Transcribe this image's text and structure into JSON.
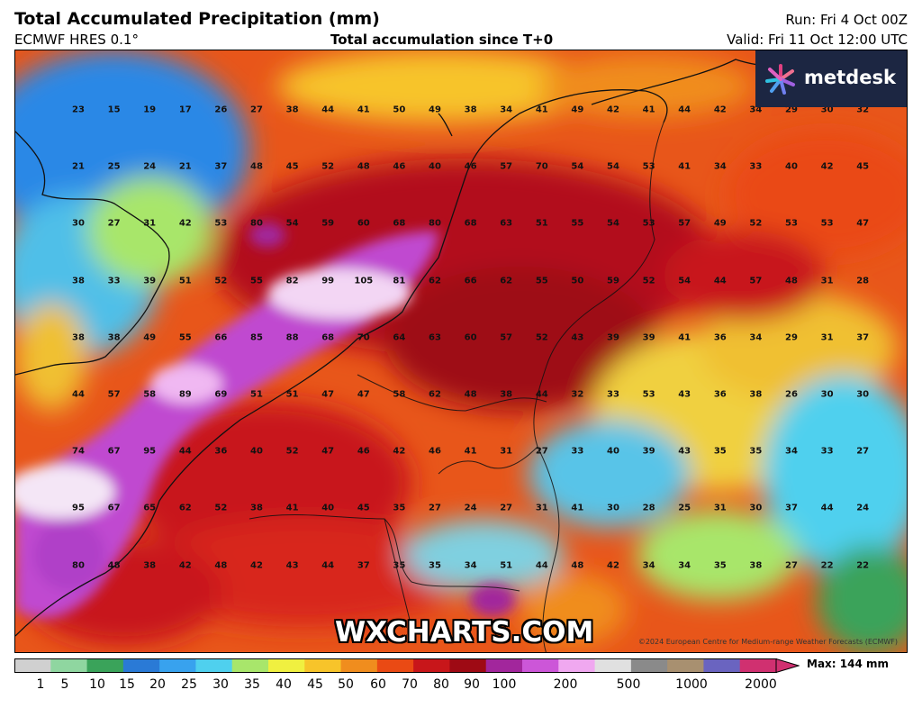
{
  "header": {
    "title": "Total Accumulated Precipitation (mm)",
    "model": "ECMWF HRES 0.1°",
    "subtitle": "Total accumulation since T+0",
    "run": "Run: Fri 4 Oct 00Z",
    "valid": "Valid: Fri 11 Oct 12:00 UTC"
  },
  "logo": {
    "text": "metdesk",
    "icon": "metdesk-star-icon"
  },
  "watermark": "WXCHARTS.COM",
  "copyright": "©2024 European Centre for Medium-range Weather Forecasts (ECMWF)",
  "legend": {
    "max_label": "Max: 144 mm",
    "ticks": [
      "1",
      "5",
      "10",
      "15",
      "20",
      "25",
      "30",
      "35",
      "40",
      "45",
      "50",
      "60",
      "70",
      "80",
      "90",
      "100",
      "200",
      "500",
      "1000",
      "2000"
    ],
    "colors": [
      "#d0d0d0",
      "#8fd6a0",
      "#3aa35a",
      "#2a7ad6",
      "#38a2ee",
      "#4fd0ee",
      "#a8e66b",
      "#f0f040",
      "#f7c42a",
      "#f08d1e",
      "#ea4a14",
      "#c8161a",
      "#9e0a14",
      "#a2269c",
      "#cc56d8",
      "#f0a8f0",
      "#e0e0e0",
      "#8a8a8a",
      "#a89070",
      "#6a64c0",
      "#d03070"
    ]
  },
  "values": [
    [
      "23",
      "15",
      "19",
      "17",
      "26",
      "27",
      "38",
      "44",
      "41",
      "50",
      "49",
      "38",
      "34",
      "41",
      "49",
      "42",
      "41",
      "44",
      "42",
      "34",
      "29",
      "30",
      "32"
    ],
    [
      "21",
      "25",
      "24",
      "21",
      "37",
      "48",
      "45",
      "52",
      "48",
      "46",
      "40",
      "46",
      "57",
      "70",
      "54",
      "54",
      "53",
      "41",
      "34",
      "33",
      "40",
      "42",
      "45"
    ],
    [
      "30",
      "27",
      "31",
      "42",
      "53",
      "80",
      "54",
      "59",
      "60",
      "68",
      "80",
      "68",
      "63",
      "51",
      "55",
      "54",
      "53",
      "57",
      "49",
      "52",
      "53",
      "53",
      "47"
    ],
    [
      "38",
      "33",
      "39",
      "51",
      "52",
      "55",
      "82",
      "99",
      "105",
      "81",
      "62",
      "66",
      "62",
      "55",
      "50",
      "59",
      "52",
      "54",
      "44",
      "57",
      "48",
      "31",
      "28"
    ],
    [
      "38",
      "38",
      "49",
      "55",
      "66",
      "85",
      "88",
      "68",
      "70",
      "64",
      "63",
      "60",
      "57",
      "52",
      "43",
      "39",
      "39",
      "41",
      "36",
      "34",
      "29",
      "31",
      "37"
    ],
    [
      "44",
      "57",
      "58",
      "89",
      "69",
      "51",
      "51",
      "47",
      "47",
      "58",
      "62",
      "48",
      "38",
      "44",
      "32",
      "33",
      "53",
      "43",
      "36",
      "38",
      "26",
      "30",
      "30"
    ],
    [
      "74",
      "67",
      "95",
      "44",
      "36",
      "40",
      "52",
      "47",
      "46",
      "42",
      "46",
      "41",
      "31",
      "27",
      "33",
      "40",
      "39",
      "43",
      "35",
      "35",
      "34",
      "33",
      "27"
    ],
    [
      "95",
      "67",
      "65",
      "62",
      "52",
      "38",
      "41",
      "40",
      "45",
      "35",
      "27",
      "24",
      "27",
      "31",
      "41",
      "30",
      "28",
      "25",
      "31",
      "30",
      "37",
      "44",
      "24"
    ],
    [
      "80",
      "48",
      "38",
      "42",
      "48",
      "42",
      "43",
      "44",
      "37",
      "35",
      "35",
      "34",
      "51",
      "44",
      "48",
      "42",
      "34",
      "34",
      "35",
      "38",
      "27",
      "22",
      "22"
    ]
  ]
}
